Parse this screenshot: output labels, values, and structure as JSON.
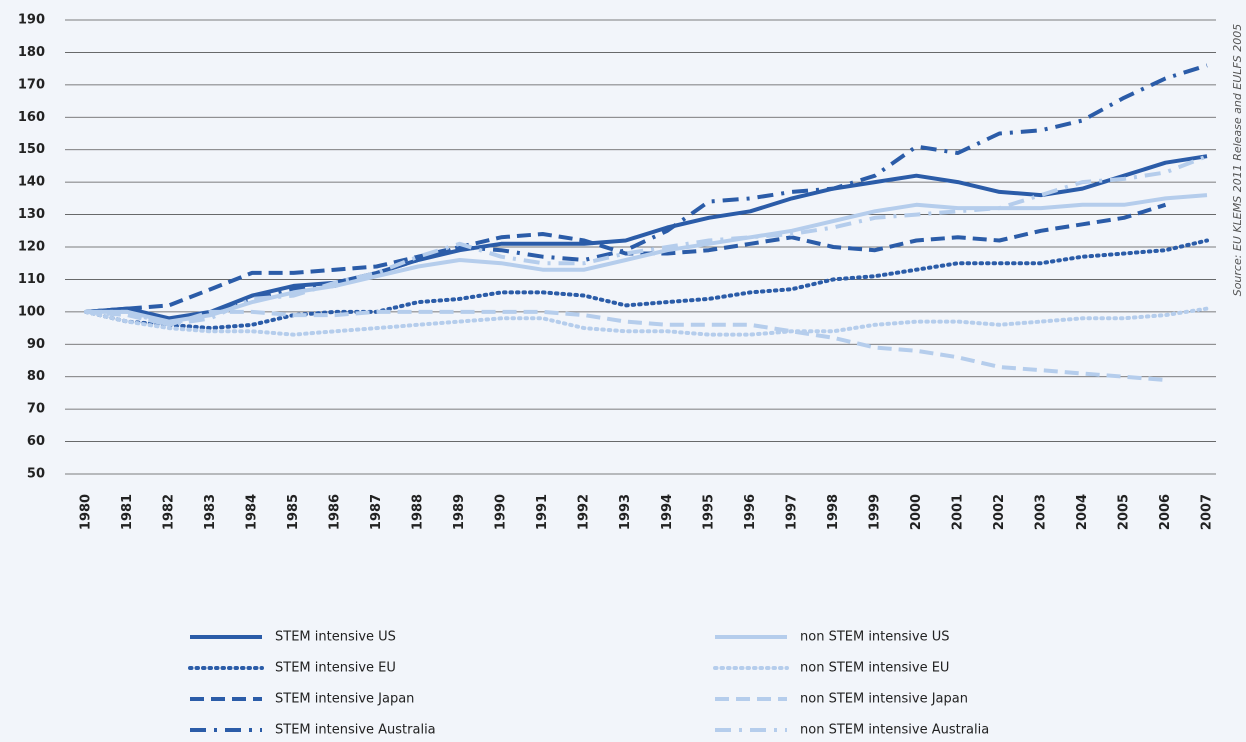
{
  "chart_data": {
    "type": "line",
    "source": "Source: EU KLEMS 2011 Release and EULFS 2005",
    "categories": [
      "1980",
      "1981",
      "1982",
      "1983",
      "1984",
      "1985",
      "1986",
      "1987",
      "1988",
      "1989",
      "1990",
      "1991",
      "1992",
      "1993",
      "1994",
      "1995",
      "1996",
      "1997",
      "1998",
      "1999",
      "2000",
      "2001",
      "2002",
      "2003",
      "2004",
      "2005",
      "2006",
      "2007"
    ],
    "ylim": [
      50,
      190
    ],
    "yticks": [
      50,
      60,
      70,
      80,
      90,
      100,
      110,
      120,
      130,
      140,
      150,
      160,
      170,
      180,
      190
    ],
    "grid": true,
    "series": [
      {
        "name": "STEM intensive US",
        "color": "#2b5ca8",
        "style": "solid",
        "values": [
          100,
          101,
          98,
          100,
          105,
          108,
          109,
          112,
          116,
          119,
          121,
          121,
          121,
          122,
          126,
          129,
          131,
          135,
          138,
          140,
          142,
          140,
          137,
          136,
          138,
          142,
          146,
          148
        ]
      },
      {
        "name": "STEM intensive EU",
        "color": "#2b5ca8",
        "style": "dotted",
        "values": [
          100,
          97,
          96,
          95,
          96,
          99,
          100,
          100,
          103,
          104,
          106,
          106,
          105,
          102,
          103,
          104,
          106,
          107,
          110,
          111,
          113,
          115,
          115,
          115,
          117,
          118,
          119,
          122
        ]
      },
      {
        "name": "STEM intensive Japan",
        "color": "#2b5ca8",
        "style": "dashed",
        "values": [
          100,
          101,
          102,
          107,
          112,
          112,
          113,
          114,
          117,
          120,
          123,
          124,
          122,
          118,
          118,
          119,
          121,
          123,
          120,
          119,
          122,
          123,
          122,
          125,
          127,
          129,
          133,
          null
        ]
      },
      {
        "name": "STEM intensive Australia",
        "color": "#2b5ca8",
        "style": "dashdot",
        "values": [
          100,
          101,
          97,
          99,
          104,
          107,
          108,
          112,
          116,
          120,
          119,
          117,
          116,
          119,
          125,
          134,
          135,
          137,
          138,
          142,
          151,
          149,
          155,
          156,
          159,
          166,
          172,
          176
        ]
      },
      {
        "name": "non STEM intensive US",
        "color": "#b5cdec",
        "style": "solid",
        "values": [
          100,
          100,
          97,
          99,
          103,
          106,
          108,
          111,
          114,
          116,
          115,
          113,
          113,
          116,
          119,
          121,
          123,
          125,
          128,
          131,
          133,
          132,
          132,
          132,
          133,
          133,
          135,
          136
        ]
      },
      {
        "name": "non STEM intensive EU",
        "color": "#b5cdec",
        "style": "dotted",
        "values": [
          100,
          97,
          95,
          94,
          94,
          93,
          94,
          95,
          96,
          97,
          98,
          98,
          95,
          94,
          94,
          93,
          93,
          94,
          94,
          96,
          97,
          97,
          96,
          97,
          98,
          98,
          99,
          101
        ]
      },
      {
        "name": "non STEM intensive Japan",
        "color": "#b5cdec",
        "style": "dashed",
        "values": [
          100,
          99,
          96,
          100,
          100,
          99,
          99,
          100,
          100,
          100,
          100,
          100,
          99,
          97,
          96,
          96,
          96,
          94,
          92,
          89,
          88,
          86,
          83,
          82,
          81,
          80,
          79,
          null
        ]
      },
      {
        "name": "non STEM intensive Australia",
        "color": "#b5cdec",
        "style": "dashdot",
        "values": [
          100,
          100,
          96,
          98,
          104,
          105,
          109,
          112,
          117,
          121,
          117,
          115,
          115,
          118,
          120,
          122,
          123,
          124,
          126,
          129,
          130,
          131,
          132,
          136,
          140,
          141,
          143,
          148
        ]
      }
    ]
  }
}
